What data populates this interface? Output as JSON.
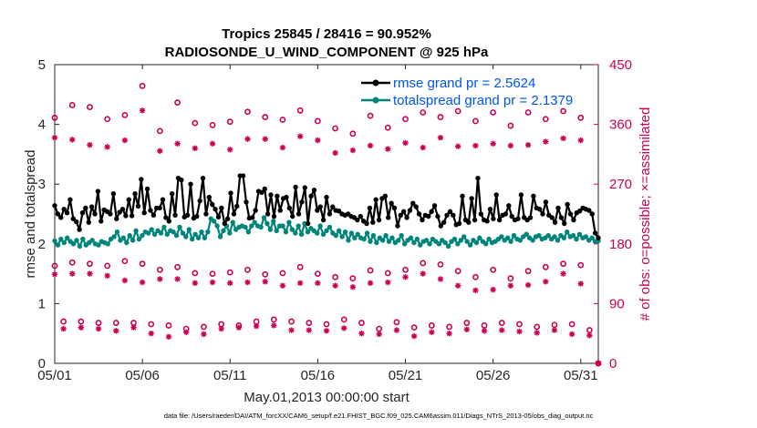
{
  "colors": {
    "rmse": "#000000",
    "spread": "#00857a",
    "obs": "#cc0052",
    "legend_text": "#0055ee",
    "axis": "#262626"
  },
  "chart_data": {
    "type": "line",
    "title_line1": "Tropics 25845 / 28416 = 90.952%",
    "title_line2": "RADIOSONDE_U_WIND_COMPONENT @ 925 hPa",
    "xlabel": "May.01,2013 00:00:00 start",
    "ylabel_left": "rmse and totalspread",
    "ylabel_right": "# of obs: o=possible; ×=assimilated",
    "footer": "data file: /Users/raeder/DAI/ATM_forcXX/CAM6_setup/f.e21.FHIST_BGC.f09_025.CAM6assim.011/Diags_NTrS_2013-05/obs_diag_output.nc",
    "xlim": [
      1,
      32
    ],
    "ylim_left": [
      0,
      5
    ],
    "ylim_right": [
      0,
      450
    ],
    "x_ticks": [
      1,
      6,
      11,
      16,
      21,
      26,
      31
    ],
    "x_tick_labels": [
      "05/01",
      "05/06",
      "05/11",
      "05/16",
      "05/21",
      "05/26",
      "05/31"
    ],
    "y_ticks_left": [
      "0",
      "1",
      "2",
      "3",
      "4",
      "5"
    ],
    "y_ticks_right": [
      "0",
      "90",
      "180",
      "270",
      "360",
      "450"
    ],
    "legend": [
      {
        "name": "rmse",
        "label": "rmse grand pr = 2.5624"
      },
      {
        "name": "spread",
        "label": "totalspread grand pr = 2.1379"
      }
    ],
    "rmse": [
      2.64,
      2.5,
      2.44,
      2.58,
      2.52,
      2.74,
      2.42,
      2.37,
      2.24,
      2.52,
      2.6,
      2.36,
      2.62,
      2.5,
      2.88,
      2.38,
      2.57,
      2.54,
      2.5,
      2.84,
      2.42,
      2.53,
      2.58,
      2.47,
      2.74,
      2.47,
      2.84,
      2.63,
      3.08,
      2.52,
      2.92,
      2.56,
      2.48,
      2.6,
      2.6,
      2.74,
      2.44,
      2.38,
      2.84,
      2.48,
      3.1,
      3.07,
      2.45,
      2.48,
      3.0,
      2.43,
      2.46,
      2.72,
      3.1,
      2.5,
      2.78,
      2.66,
      2.58,
      2.45,
      2.6,
      2.34,
      2.42,
      2.85,
      2.5,
      2.63,
      3.14,
      3.14,
      2.7,
      2.43,
      2.44,
      2.56,
      2.88,
      2.86,
      2.92,
      2.5,
      2.82,
      2.46,
      2.8,
      2.56,
      2.76,
      2.78,
      2.6,
      2.46,
      2.95,
      2.5,
      2.7,
      2.94,
      2.34,
      2.8,
      2.9,
      2.56,
      2.62,
      2.4,
      2.78,
      2.5,
      2.62,
      2.56,
      2.55,
      2.5,
      2.48,
      2.5,
      2.46,
      2.44,
      2.4,
      2.46,
      2.38,
      2.34,
      2.6,
      2.36,
      2.74,
      2.4,
      2.76,
      2.8,
      2.44,
      2.68,
      2.6,
      2.3,
      2.48,
      2.54,
      2.44,
      2.56,
      2.68,
      2.62,
      2.5,
      2.4,
      2.48,
      2.46,
      2.54,
      2.64,
      2.46,
      2.3,
      2.36,
      2.48,
      2.54,
      2.48,
      2.32,
      2.34,
      2.8,
      2.4,
      2.36,
      2.76,
      2.4,
      3.1,
      2.5,
      2.4,
      2.38,
      2.58,
      2.42,
      2.82,
      2.4,
      2.48,
      2.5,
      2.64,
      2.46,
      2.4,
      2.42,
      2.82,
      2.44,
      2.4,
      2.44,
      2.8,
      2.6,
      2.58,
      2.5,
      2.7,
      2.48,
      2.44,
      2.36,
      2.6,
      2.44,
      2.34,
      2.66,
      2.5,
      2.4,
      2.52,
      2.55,
      2.6,
      2.58,
      2.56,
      2.5,
      2.18,
      2.1
    ],
    "spread": [
      2.05,
      1.98,
      2.08,
      2.02,
      2.1,
      2.04,
      2.0,
      2.06,
      1.96,
      2.08,
      1.98,
      2.02,
      2.06,
      2.0,
      1.98,
      2.04,
      2.02,
      2.0,
      2.08,
      2.12,
      2.2,
      2.06,
      2.1,
      2.02,
      2.14,
      2.06,
      2.22,
      2.08,
      2.14,
      2.2,
      2.18,
      2.24,
      2.16,
      2.22,
      2.18,
      2.28,
      2.16,
      2.22,
      2.2,
      2.14,
      2.28,
      2.18,
      2.12,
      2.24,
      2.08,
      2.16,
      2.1,
      2.2,
      2.1,
      2.2,
      2.42,
      2.38,
      2.3,
      2.12,
      2.22,
      2.3,
      2.18,
      2.36,
      2.24,
      2.28,
      2.3,
      2.28,
      2.2,
      2.3,
      2.36,
      2.3,
      2.28,
      2.44,
      2.34,
      2.24,
      2.38,
      2.22,
      2.3,
      2.3,
      2.2,
      2.36,
      2.24,
      2.18,
      2.3,
      2.16,
      2.34,
      2.2,
      2.26,
      2.22,
      2.18,
      2.3,
      2.16,
      2.22,
      2.28,
      2.18,
      2.14,
      2.22,
      2.12,
      2.2,
      2.06,
      2.18,
      2.1,
      2.16,
      2.1,
      2.08,
      2.18,
      2.04,
      2.14,
      2.02,
      2.1,
      2.06,
      2.14,
      2.04,
      2.1,
      2.02,
      2.06,
      2.14,
      2.0,
      2.06,
      2.1,
      2.02,
      2.08,
      1.98,
      2.04,
      2.06,
      2.0,
      2.08,
      2.04,
      2.0,
      2.06,
      2.02,
      1.96,
      2.04,
      2.08,
      2.0,
      2.06,
      2.12,
      2.04,
      1.98,
      2.06,
      2.02,
      2.1,
      2.04,
      2.0,
      2.08,
      2.02,
      2.04,
      2.08,
      2.12,
      2.06,
      2.1,
      2.04,
      2.14,
      2.08,
      2.06,
      2.12,
      2.16,
      2.1,
      2.06,
      2.12,
      2.14,
      2.08,
      2.1,
      2.14,
      2.08,
      2.12,
      2.06,
      2.14,
      2.1,
      2.2,
      2.12,
      2.14,
      2.08,
      2.16,
      2.1,
      2.12,
      2.06,
      2.1,
      2.04,
      2.05
    ],
    "obs_possible": [
      [
        1.0,
        370
      ],
      [
        1.0,
        147
      ],
      [
        1.5,
        63
      ],
      [
        2.0,
        389
      ],
      [
        2.0,
        152
      ],
      [
        2.5,
        63
      ],
      [
        3.0,
        386
      ],
      [
        3.0,
        150
      ],
      [
        3.5,
        61
      ],
      [
        4.0,
        368
      ],
      [
        4.0,
        147
      ],
      [
        4.5,
        61
      ],
      [
        5.0,
        374
      ],
      [
        5.0,
        154
      ],
      [
        5.5,
        61
      ],
      [
        6.0,
        418
      ],
      [
        6.0,
        150
      ],
      [
        6.5,
        59
      ],
      [
        7.0,
        350
      ],
      [
        7.0,
        141
      ],
      [
        7.5,
        57
      ],
      [
        8.0,
        393
      ],
      [
        8.0,
        145
      ],
      [
        8.5,
        52
      ],
      [
        9.0,
        362
      ],
      [
        9.0,
        136
      ],
      [
        9.5,
        55
      ],
      [
        10.0,
        359
      ],
      [
        10.0,
        135
      ],
      [
        10.5,
        59
      ],
      [
        11.0,
        364
      ],
      [
        11.0,
        137
      ],
      [
        11.5,
        57
      ],
      [
        12.0,
        379
      ],
      [
        12.0,
        141
      ],
      [
        12.5,
        63
      ],
      [
        13.0,
        371
      ],
      [
        13.0,
        134
      ],
      [
        13.5,
        66
      ],
      [
        14.0,
        367
      ],
      [
        14.0,
        136
      ],
      [
        14.5,
        63
      ],
      [
        15.0,
        381
      ],
      [
        15.0,
        145
      ],
      [
        15.5,
        61
      ],
      [
        16.0,
        365
      ],
      [
        16.0,
        135
      ],
      [
        16.5,
        59
      ],
      [
        17.0,
        354
      ],
      [
        17.0,
        130
      ],
      [
        17.5,
        66
      ],
      [
        18.0,
        346
      ],
      [
        18.0,
        128
      ],
      [
        18.5,
        61
      ],
      [
        19.0,
        373
      ],
      [
        19.0,
        140
      ],
      [
        19.5,
        52
      ],
      [
        20.0,
        355
      ],
      [
        20.0,
        136
      ],
      [
        20.5,
        62
      ],
      [
        21.0,
        368
      ],
      [
        21.0,
        141
      ],
      [
        21.5,
        54
      ],
      [
        22.0,
        378
      ],
      [
        22.0,
        151
      ],
      [
        22.5,
        57
      ],
      [
        23.0,
        371
      ],
      [
        23.0,
        149
      ],
      [
        23.5,
        55
      ],
      [
        24.0,
        380
      ],
      [
        24.0,
        139
      ],
      [
        24.5,
        61
      ],
      [
        25.0,
        365
      ],
      [
        25.0,
        130
      ],
      [
        25.5,
        57
      ],
      [
        26.0,
        378
      ],
      [
        26.0,
        141
      ],
      [
        26.5,
        61
      ],
      [
        27.0,
        358
      ],
      [
        27.0,
        128
      ],
      [
        27.5,
        59
      ],
      [
        28.0,
        378
      ],
      [
        28.0,
        139
      ],
      [
        28.5,
        55
      ],
      [
        29.0,
        368
      ],
      [
        29.0,
        145
      ],
      [
        29.5,
        58
      ],
      [
        30.0,
        380
      ],
      [
        30.0,
        150
      ],
      [
        30.5,
        59
      ],
      [
        31.0,
        370
      ],
      [
        31.0,
        148
      ],
      [
        31.5,
        50
      ]
    ],
    "obs_assimilated": [
      [
        1.0,
        340
      ],
      [
        1.0,
        134
      ],
      [
        1.5,
        52
      ],
      [
        2.0,
        337
      ],
      [
        2.0,
        135
      ],
      [
        2.5,
        54
      ],
      [
        3.0,
        329
      ],
      [
        3.0,
        135
      ],
      [
        3.5,
        52
      ],
      [
        4.0,
        326
      ],
      [
        4.0,
        132
      ],
      [
        4.5,
        49
      ],
      [
        5.0,
        336
      ],
      [
        5.0,
        125
      ],
      [
        5.5,
        54
      ],
      [
        6.0,
        381
      ],
      [
        6.0,
        122
      ],
      [
        6.5,
        45
      ],
      [
        7.0,
        320
      ],
      [
        7.0,
        127
      ],
      [
        7.5,
        40
      ],
      [
        8.0,
        331
      ],
      [
        8.0,
        127
      ],
      [
        8.5,
        47
      ],
      [
        9.0,
        324
      ],
      [
        9.0,
        121
      ],
      [
        9.5,
        44
      ],
      [
        10.0,
        331
      ],
      [
        10.0,
        122
      ],
      [
        10.5,
        52
      ],
      [
        11.0,
        322
      ],
      [
        11.0,
        121
      ],
      [
        11.5,
        54
      ],
      [
        12.0,
        338
      ],
      [
        12.0,
        122
      ],
      [
        12.5,
        56
      ],
      [
        13.0,
        338
      ],
      [
        13.0,
        123
      ],
      [
        13.5,
        57
      ],
      [
        14.0,
        325
      ],
      [
        14.0,
        117
      ],
      [
        14.5,
        50
      ],
      [
        15.0,
        342
      ],
      [
        15.0,
        121
      ],
      [
        15.5,
        50
      ],
      [
        16.0,
        336
      ],
      [
        16.0,
        121
      ],
      [
        16.5,
        49
      ],
      [
        17.0,
        317
      ],
      [
        17.0,
        117
      ],
      [
        17.5,
        53
      ],
      [
        18.0,
        321
      ],
      [
        18.0,
        115
      ],
      [
        18.5,
        45
      ],
      [
        19.0,
        328
      ],
      [
        19.0,
        121
      ],
      [
        19.5,
        44
      ],
      [
        20.0,
        323
      ],
      [
        20.0,
        122
      ],
      [
        20.5,
        50
      ],
      [
        21.0,
        332
      ],
      [
        21.0,
        130
      ],
      [
        21.5,
        41
      ],
      [
        22.0,
        325
      ],
      [
        22.0,
        135
      ],
      [
        22.5,
        47
      ],
      [
        23.0,
        340
      ],
      [
        23.0,
        127
      ],
      [
        23.5,
        45
      ],
      [
        24.0,
        327
      ],
      [
        24.0,
        117
      ],
      [
        24.5,
        51
      ],
      [
        25.0,
        328
      ],
      [
        25.0,
        110
      ],
      [
        25.5,
        49
      ],
      [
        26.0,
        331
      ],
      [
        26.0,
        111
      ],
      [
        26.5,
        50
      ],
      [
        27.0,
        328
      ],
      [
        27.0,
        117
      ],
      [
        27.5,
        48
      ],
      [
        28.0,
        329
      ],
      [
        28.0,
        118
      ],
      [
        28.5,
        46
      ],
      [
        29.0,
        334
      ],
      [
        29.0,
        123
      ],
      [
        29.5,
        50
      ],
      [
        30.0,
        339
      ],
      [
        30.0,
        135
      ],
      [
        30.5,
        44
      ],
      [
        31.0,
        336
      ],
      [
        31.0,
        120
      ],
      [
        31.5,
        42
      ]
    ]
  }
}
